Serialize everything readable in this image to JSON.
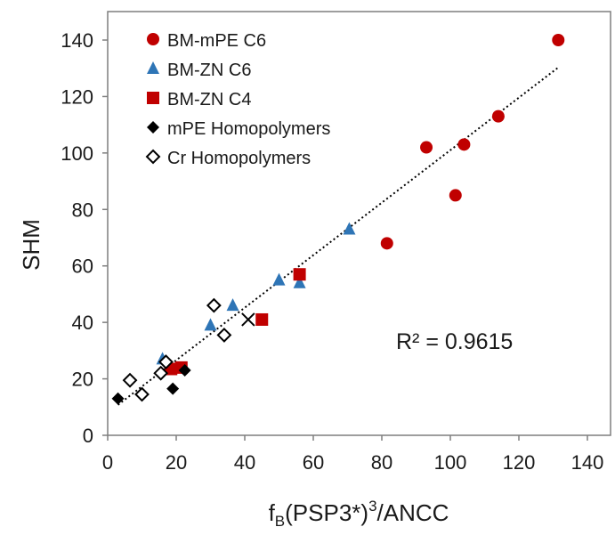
{
  "chart_data": {
    "type": "scatter",
    "xlabel_main": "f",
    "xlabel_sub": "B",
    "xlabel_mid": "(PSP3*)",
    "xlabel_sup": "3",
    "xlabel_end": "/ANCC",
    "ylabel": "SHM",
    "xlim": [
      0,
      140
    ],
    "ylim": [
      0,
      140
    ],
    "x_ticks": [
      "0",
      "20",
      "40",
      "60",
      "80",
      "100",
      "120",
      "140"
    ],
    "y_ticks": [
      "0",
      "20",
      "40",
      "60",
      "80",
      "100",
      "120",
      "140"
    ],
    "grid": false,
    "legend_position": "top-left",
    "annotation": "R² = 0.9615",
    "series": [
      {
        "name": "BM-mPE C6",
        "marker": "circle",
        "color": "#c00000",
        "points": [
          [
            81.5,
            68
          ],
          [
            93,
            102
          ],
          [
            101.5,
            85
          ],
          [
            104,
            103
          ],
          [
            114,
            113
          ],
          [
            131.5,
            140
          ]
        ]
      },
      {
        "name": "BM-ZN C6",
        "marker": "triangle",
        "color": "#2e75b6",
        "points": [
          [
            16,
            27
          ],
          [
            30,
            39
          ],
          [
            36.5,
            46
          ],
          [
            50,
            55
          ],
          [
            56,
            54
          ],
          [
            70.5,
            73
          ]
        ]
      },
      {
        "name": "BM-ZN C4",
        "marker": "square",
        "color": "#c00000",
        "points": [
          [
            18.5,
            23.5
          ],
          [
            21.5,
            24
          ],
          [
            45,
            41
          ],
          [
            56,
            57
          ]
        ]
      },
      {
        "name": "mPE Homopolymers",
        "marker": "diamond-filled",
        "color": "#000000",
        "points": [
          [
            3,
            13
          ],
          [
            19,
            16.5
          ],
          [
            22.5,
            23
          ]
        ]
      },
      {
        "name": "Cr Homopolymers",
        "marker": "diamond-open",
        "color": "#000000",
        "points": [
          [
            6.5,
            19.5
          ],
          [
            10,
            14.5
          ],
          [
            15.5,
            22
          ],
          [
            17,
            26
          ],
          [
            31,
            46
          ],
          [
            34,
            35.5
          ]
        ]
      }
    ],
    "extra_points": [
      {
        "marker": "x",
        "color": "#000000",
        "x": 41,
        "y": 41
      }
    ],
    "trendline": {
      "style": "dotted",
      "color": "#000000",
      "x_range": [
        3,
        131.5
      ],
      "slope": 0.93,
      "intercept": 8
    }
  }
}
